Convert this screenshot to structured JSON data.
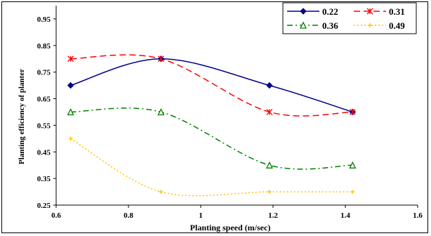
{
  "chart_data": {
    "type": "line",
    "title": "",
    "xlabel": "Planting speed (m/sec)",
    "ylabel": "Planting efficiency of planter",
    "xlim": [
      0.6,
      1.6
    ],
    "ylim": [
      0.25,
      1.0
    ],
    "xticks": [
      "0.6",
      "0.8",
      "1",
      "1.2",
      "1.4",
      "1.6"
    ],
    "yticks": [
      "0.25",
      "0.35",
      "0.45",
      "0.55",
      "0.65",
      "0.75",
      "0.85",
      "0.95"
    ],
    "grid": false,
    "legend_position": "top-right",
    "series": [
      {
        "name": "0.22",
        "color": "#00008B",
        "dash": "solid",
        "marker": "diamond",
        "x": [
          0.64,
          0.89,
          1.19,
          1.42
        ],
        "y": [
          0.7,
          0.8,
          0.7,
          0.6
        ]
      },
      {
        "name": "0.31",
        "color": "#FF0000",
        "dash": "dashed",
        "marker": "star",
        "x": [
          0.64,
          0.89,
          1.19,
          1.42
        ],
        "y": [
          0.8,
          0.8,
          0.6,
          0.6
        ]
      },
      {
        "name": "0.36",
        "color": "#008000",
        "dash": "dashdot",
        "marker": "triangle",
        "x": [
          0.64,
          0.89,
          1.19,
          1.42
        ],
        "y": [
          0.6,
          0.6,
          0.4,
          0.4
        ]
      },
      {
        "name": "0.49",
        "color": "#FFC000",
        "dash": "dotted",
        "marker": "plus",
        "x": [
          0.64,
          0.89,
          1.19,
          1.42
        ],
        "y": [
          0.5,
          0.3,
          0.3,
          0.3
        ]
      }
    ]
  }
}
